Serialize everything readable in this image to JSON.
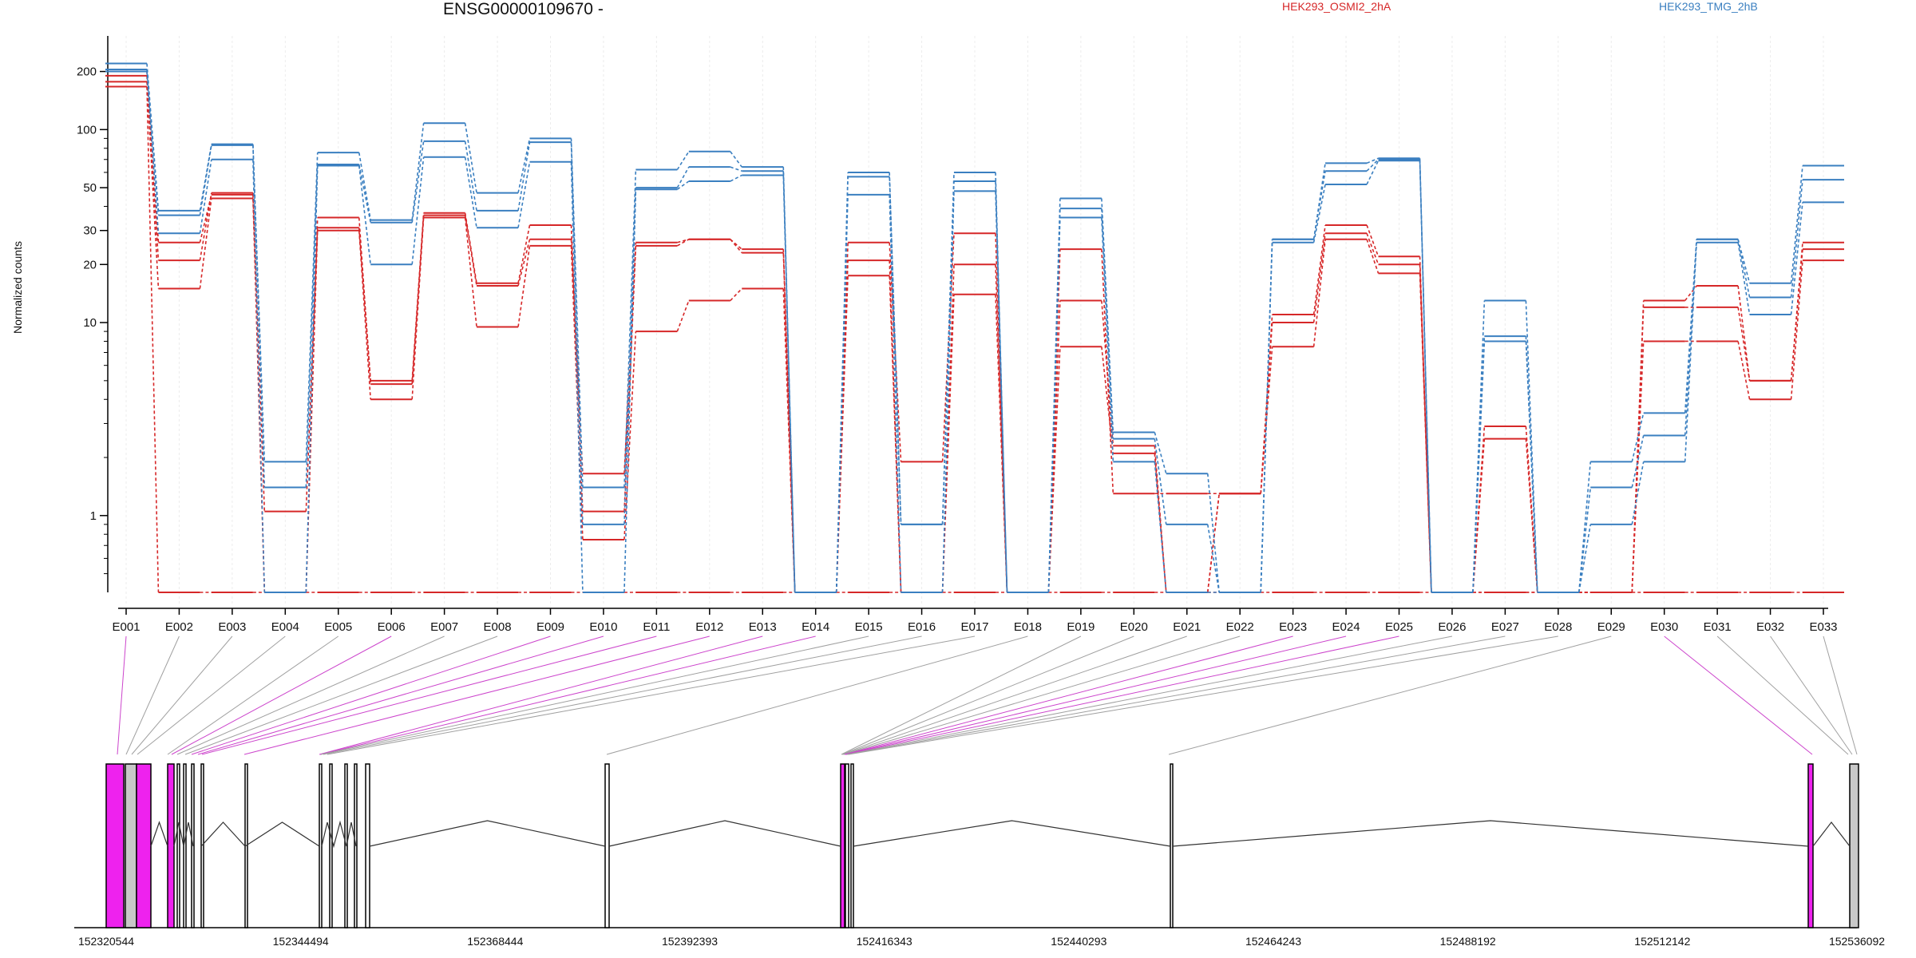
{
  "header": {
    "title": "ENSG00000109670 -",
    "legend": [
      {
        "label": "HEK293_OSMI2_2hA",
        "color": "#d62728"
      },
      {
        "label": "HEK293_TMG_2hB",
        "color": "#3a7fc0"
      }
    ]
  },
  "colors": {
    "red": "#d62728",
    "blue": "#3a7fc0",
    "magenta": "#ee22ee",
    "gray_exon": "#c8c8c8",
    "connector_gray": "#a0a0a0",
    "connector_magenta": "#cc44cc"
  },
  "chart_data": {
    "type": "line",
    "ylabel": "Normalized counts",
    "yscale": "log",
    "yticks": [
      1,
      10,
      20,
      30,
      50,
      100,
      200
    ],
    "ylim": [
      0.4,
      260
    ],
    "zero_floor": 0.4,
    "categories": [
      "E001",
      "E002",
      "E003",
      "E004",
      "E005",
      "E006",
      "E007",
      "E008",
      "E009",
      "E010",
      "E011",
      "E012",
      "E013",
      "E014",
      "E015",
      "E016",
      "E017",
      "E018",
      "E019",
      "E020",
      "E021",
      "E022",
      "E023",
      "E024",
      "E025",
      "E026",
      "E027",
      "E028",
      "E029",
      "E030",
      "E031",
      "E032",
      "E033"
    ],
    "series": [
      {
        "name": "HEK293_OSMI2_2hA",
        "group": "red",
        "values": [
          200,
          26,
          46,
          1.05,
          31,
          5.0,
          37,
          16,
          32,
          1.05,
          25,
          27,
          24,
          0,
          26,
          1.9,
          29,
          0,
          24,
          1.3,
          1.3,
          1.3,
          11,
          32,
          22,
          0,
          2.5,
          0,
          0,
          13,
          15.5,
          5.0,
          26
        ]
      },
      {
        "name": "",
        "group": "red",
        "values": [
          190,
          21,
          47,
          0,
          35,
          4.8,
          36,
          15.5,
          27,
          1.65,
          26,
          27,
          23,
          0,
          21,
          0,
          20,
          0,
          13,
          2.3,
          0,
          1.3,
          10,
          29,
          20,
          0,
          2.9,
          0,
          0,
          12,
          12,
          5.0,
          24
        ]
      },
      {
        "name": "",
        "group": "red",
        "values": [
          177,
          15,
          44,
          0,
          30,
          4.0,
          35,
          9.5,
          25,
          0.75,
          9,
          13,
          15,
          0,
          17.5,
          0,
          14,
          0,
          7.5,
          2.1,
          0,
          1.3,
          7.5,
          27,
          18,
          0,
          0,
          0,
          0,
          8,
          8,
          4.0,
          21
        ]
      },
      {
        "name": "",
        "group": "red",
        "values": [
          167,
          0,
          0,
          0,
          0,
          0,
          0,
          0,
          0,
          0,
          0,
          0,
          0,
          0,
          0,
          0,
          0,
          0,
          0,
          0,
          0,
          0,
          0,
          0,
          0,
          0,
          0,
          0,
          0,
          0,
          0,
          0,
          0
        ]
      },
      {
        "name": "HEK293_TMG_2hB",
        "group": "blue",
        "values": [
          220,
          38,
          84,
          1.9,
          76,
          34,
          108,
          47,
          90,
          1.4,
          62,
          77,
          64,
          0,
          60,
          0.9,
          60,
          0,
          44,
          2.7,
          1.65,
          0,
          27,
          67,
          71,
          0,
          13,
          0,
          1.9,
          3.4,
          27,
          16,
          65
        ]
      },
      {
        "name": "",
        "group": "blue",
        "values": [
          205,
          36,
          83,
          1.4,
          66,
          33,
          87,
          38,
          86,
          0.9,
          50,
          64,
          61,
          0,
          57,
          0.9,
          54,
          0,
          39,
          2.5,
          0.9,
          0,
          27,
          61,
          70,
          0,
          8.5,
          0,
          1.4,
          2.6,
          27,
          13.5,
          55
        ]
      },
      {
        "name": "",
        "group": "blue",
        "values": [
          200,
          29,
          70,
          0,
          65,
          20,
          72,
          31,
          68,
          0,
          49,
          54,
          58,
          0,
          46,
          0,
          48,
          0,
          35,
          1.9,
          0,
          0,
          26,
          52,
          69,
          0,
          8,
          0,
          0.9,
          1.9,
          26,
          11,
          42
        ]
      }
    ]
  },
  "gene_track": {
    "start_label": "152320544",
    "end_label": "152536092",
    "tick_labels": [
      "152320544",
      "152344494",
      "152368444",
      "152392393",
      "152416343",
      "152440293",
      "152464243",
      "152488192",
      "152512142",
      "152536092"
    ]
  }
}
